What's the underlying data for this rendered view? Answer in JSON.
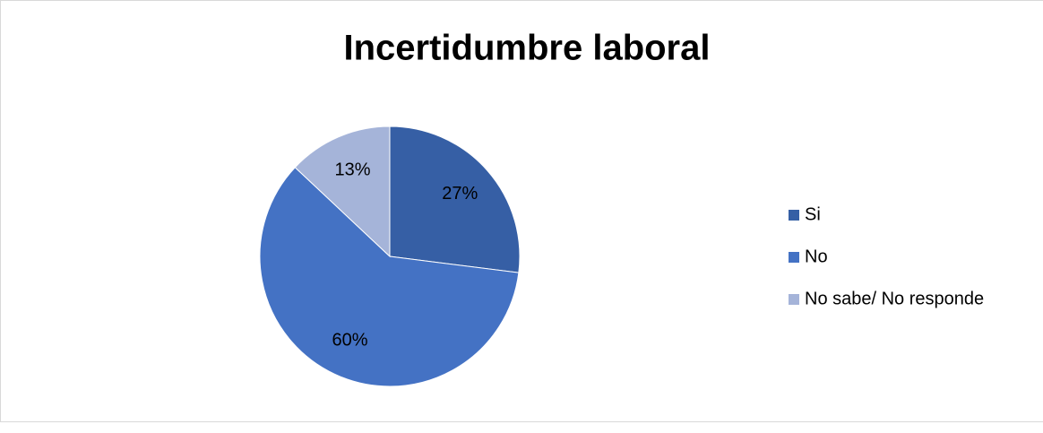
{
  "chart_data": {
    "type": "pie",
    "title": "Incertidumbre laboral",
    "categories": [
      "Si",
      "No",
      "No sabe/ No responde"
    ],
    "values": [
      27,
      60,
      13
    ],
    "value_labels": [
      "27%",
      "60%",
      "13%"
    ],
    "colors": [
      "#365fa5",
      "#4472c4",
      "#a5b4d9"
    ],
    "legend": "right"
  }
}
